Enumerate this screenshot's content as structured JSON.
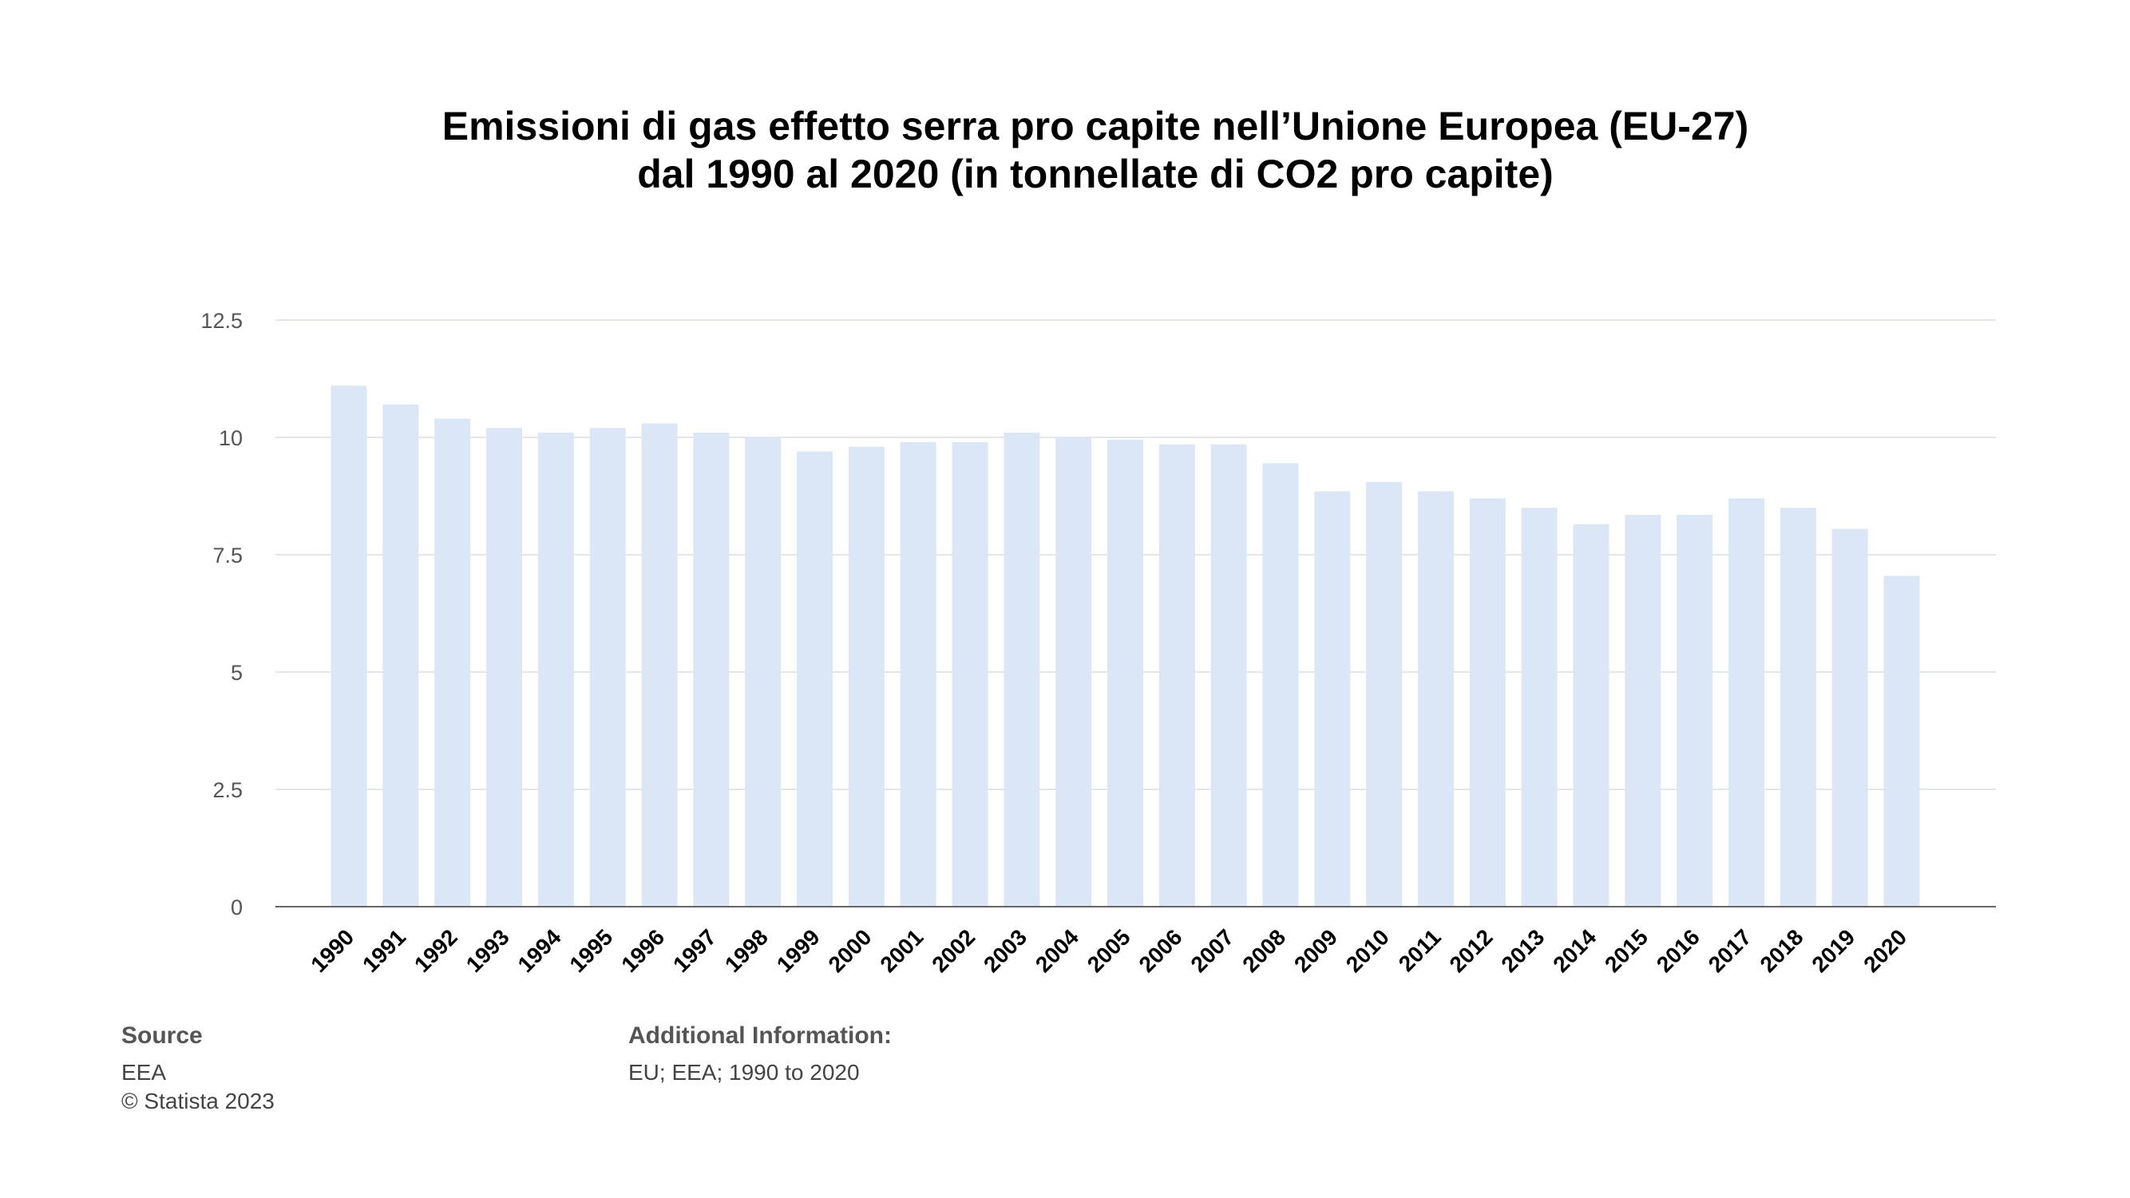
{
  "chart_data": {
    "type": "bar",
    "title_line1": "Emissioni di gas effetto serra pro capite nell’Unione Europea (EU-27)",
    "title_line2": "dal 1990 al 2020 (in tonnellate di CO2 pro capite)",
    "xlabel": "",
    "ylabel": "",
    "ylim": [
      0,
      12.5
    ],
    "yticks": [
      "0",
      "2.5",
      "5",
      "7.5",
      "10",
      "12.5"
    ],
    "ytick_values": [
      0,
      2.5,
      5,
      7.5,
      10,
      12.5
    ],
    "grid": true,
    "categories": [
      "1990",
      "1991",
      "1992",
      "1993",
      "1994",
      "1995",
      "1996",
      "1997",
      "1998",
      "1999",
      "2000",
      "2001",
      "2002",
      "2003",
      "2004",
      "2005",
      "2006",
      "2007",
      "2008",
      "2009",
      "2010",
      "2011",
      "2012",
      "2013",
      "2014",
      "2015",
      "2016",
      "2017",
      "2018",
      "2019",
      "2020"
    ],
    "values": [
      11.1,
      10.7,
      10.4,
      10.2,
      10.1,
      10.2,
      10.3,
      10.1,
      10.0,
      9.7,
      9.8,
      9.9,
      9.9,
      10.1,
      10.0,
      9.95,
      9.85,
      9.85,
      9.45,
      8.85,
      9.05,
      8.85,
      8.7,
      8.5,
      8.15,
      8.35,
      8.35,
      8.7,
      8.5,
      8.05,
      7.05
    ],
    "bar_color": "#dbe7f7"
  },
  "footer": {
    "source_label": "Source",
    "source_lines": [
      "EEA",
      "© Statista 2023"
    ],
    "additional_label": "Additional Information:",
    "additional_text": "EU; EEA; 1990 to 2020"
  }
}
